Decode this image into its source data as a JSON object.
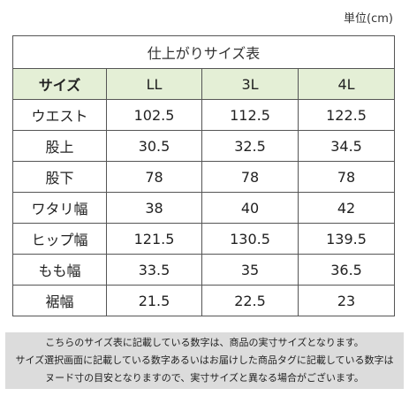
{
  "unit_note": "単位(cm)",
  "table": {
    "title": "仕上がりサイズ表",
    "header": {
      "corner_label": "サイズ",
      "sizes": [
        "LL",
        "3L",
        "4L"
      ]
    },
    "rows": [
      {
        "label": "ウエスト",
        "values": [
          "102.5",
          "112.5",
          "122.5"
        ]
      },
      {
        "label": "股上",
        "values": [
          "30.5",
          "32.5",
          "34.5"
        ]
      },
      {
        "label": "股下",
        "values": [
          "78",
          "78",
          "78"
        ]
      },
      {
        "label": "ワタリ幅",
        "values": [
          "38",
          "40",
          "42"
        ]
      },
      {
        "label": "ヒップ幅",
        "values": [
          "121.5",
          "130.5",
          "139.5"
        ]
      },
      {
        "label": "もも幅",
        "values": [
          "33.5",
          "35",
          "36.5"
        ]
      },
      {
        "label": "裾幅",
        "values": [
          "21.5",
          "22.5",
          "23"
        ]
      }
    ]
  },
  "notes": [
    "こちらのサイズ表に記載している数字は、商品の実寸サイズとなります。",
    "サイズ選択画面に記載している数字あるいはお届けした商品タグに記載している数字は",
    "ヌード寸の目安となりますので、実寸サイズと異なる場合がございます。"
  ],
  "colors": {
    "header_background": "#e4efd6",
    "note_background": "#dcdcdc",
    "border": "#555555"
  }
}
